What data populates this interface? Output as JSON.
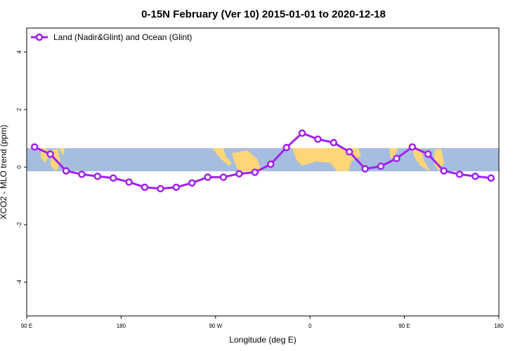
{
  "chart_data": {
    "type": "line",
    "title": "0-15N February (Ver 10)   2015-01-01 to 2020-12-18",
    "x_label": "Longitude (deg E)",
    "y_label": "XCO2 - MLO trend (ppm)",
    "xlim": [
      90,
      540
    ],
    "xticks": [
      {
        "value": 90,
        "label": "90 E"
      },
      {
        "value": 180,
        "label": "180"
      },
      {
        "value": 270,
        "label": "90 W"
      },
      {
        "value": 360,
        "label": "0"
      },
      {
        "value": 450,
        "label": "90 E"
      },
      {
        "value": 540,
        "label": "180"
      }
    ],
    "ylim": [
      -5.17,
      4.83
    ],
    "yticks": [
      -4,
      -2,
      0,
      2,
      4
    ],
    "legend": "top-left",
    "x": [
      97.5,
      112.5,
      127.5,
      142.5,
      157.5,
      172.5,
      187.5,
      202.5,
      217.5,
      232.5,
      247.5,
      262.5,
      277.5,
      292.5,
      307.5,
      322.5,
      337.5,
      352.5,
      367.5,
      382.5,
      397.5,
      412.5,
      427.5,
      442.5,
      457.5,
      472.5,
      487.5,
      502.5,
      517.5,
      532.5
    ],
    "series": [
      {
        "name": "Land (Nadir&Glint) and Ocean (Glint)",
        "color": "#a020f0",
        "values": [
          0.7,
          0.45,
          -0.13,
          -0.25,
          -0.32,
          -0.38,
          -0.52,
          -0.7,
          -0.75,
          -0.7,
          -0.55,
          -0.35,
          -0.35,
          -0.23,
          -0.18,
          0.1,
          0.68,
          1.18,
          0.97,
          0.85,
          0.53,
          -0.06,
          0.03,
          0.3,
          0.7,
          0.45,
          -0.13,
          -0.25,
          -0.32,
          -0.38
        ]
      }
    ]
  }
}
